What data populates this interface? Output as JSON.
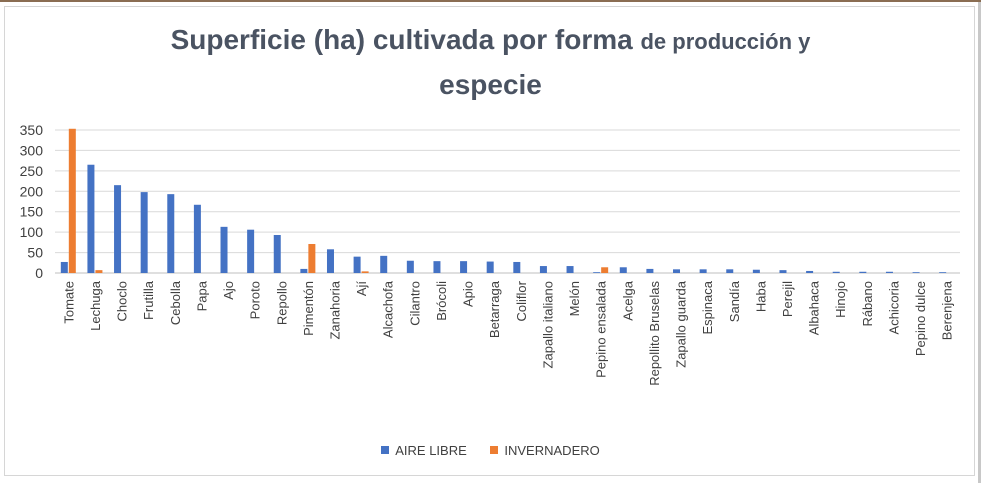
{
  "chart_data": {
    "type": "bar",
    "title_part1": "Superficie (ha) cultivada por forma ",
    "title_part2": "de producción y",
    "title_part3": "especie",
    "ylim": [
      0,
      350
    ],
    "yticks": [
      0,
      50,
      100,
      150,
      200,
      250,
      300,
      350
    ],
    "categories": [
      "Tomate",
      "Lechuga",
      "Choclo",
      "Frutilla",
      "Cebolla",
      "Papa",
      "Ajo",
      "Poroto",
      "Repollo",
      "Pimentón",
      "Zanahoria",
      "Ají",
      "Alcachofa",
      "Cilantro",
      "Brócoli",
      "Apio",
      "Betarraga",
      "Coliflor",
      "Zapallo italiano",
      "Melón",
      "Pepino ensalada",
      "Acelga",
      "Repollito Bruselas",
      "Zapallo guarda",
      "Espinaca",
      "Sandía",
      "Haba",
      "Perejil",
      "Albahaca",
      "Hinojo",
      "Rábano",
      "Achicoria",
      "Pepino dulce",
      "Berenjena"
    ],
    "series": [
      {
        "name": "AIRE LIBRE",
        "color": "#4472c4",
        "values": [
          27,
          265,
          215,
          198,
          193,
          167,
          113,
          106,
          93,
          10,
          58,
          40,
          42,
          30,
          29,
          29,
          28,
          27,
          17,
          17,
          2,
          14,
          10,
          9,
          9,
          9,
          8,
          7,
          5,
          3,
          3,
          3,
          2,
          2
        ]
      },
      {
        "name": "INVERNADERO",
        "color": "#ed7d31",
        "values": [
          353,
          7,
          0,
          0,
          0,
          0,
          0,
          0,
          0,
          71,
          0,
          4,
          0,
          0,
          0,
          0,
          0,
          0,
          0,
          0,
          14,
          0,
          0,
          0,
          0,
          0,
          0,
          0,
          0,
          0,
          0,
          0,
          0,
          0
        ]
      }
    ]
  }
}
